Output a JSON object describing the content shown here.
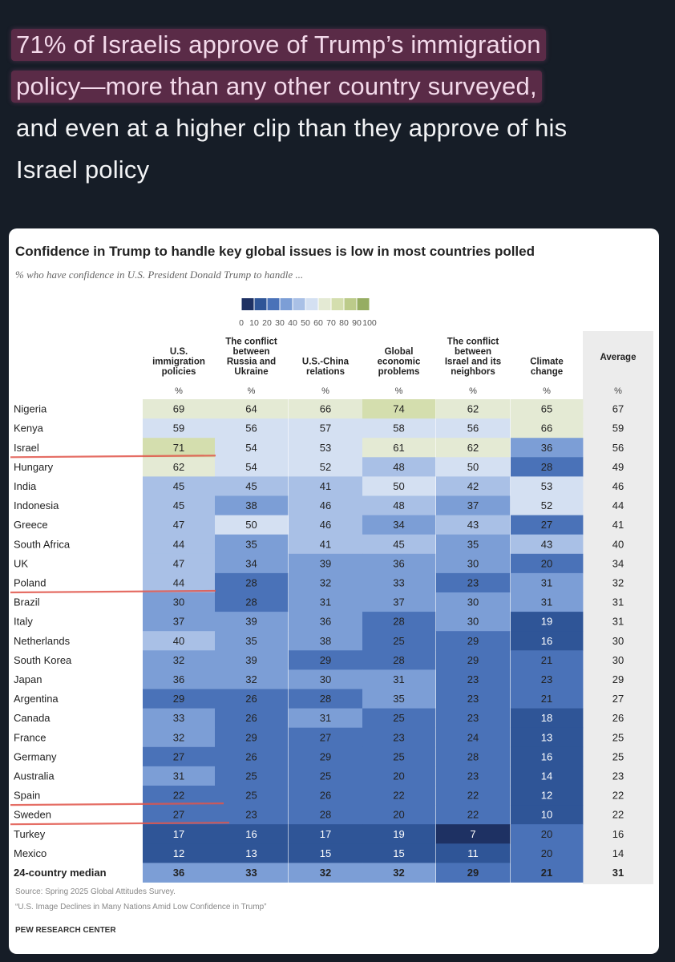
{
  "post": {
    "lines": [
      "71% of Israelis approve of Trump’s immigration",
      "policy—more than any other country surveyed,",
      "and even at a higher clip than they approve of his",
      "Israel policy"
    ]
  },
  "chart_data": {
    "type": "heatmap",
    "title": "Confidence in Trump to handle key global issues is low in most countries polled",
    "subtitle": "% who have confidence in U.S. President Donald Trump to handle ...",
    "legend_ticks": [
      "0",
      "10",
      "20",
      "30",
      "40",
      "50",
      "60",
      "70",
      "80",
      "90",
      "100"
    ],
    "columns": [
      [
        "U.S.",
        "immigration",
        "policies"
      ],
      [
        "The conflict",
        "between",
        "Russia and",
        "Ukraine"
      ],
      [
        "U.S.-China",
        "relations"
      ],
      [
        "Global",
        "economic",
        "problems"
      ],
      [
        "The conflict",
        "between",
        "Israel and its",
        "neighbors"
      ],
      [
        "Climate",
        "change"
      ]
    ],
    "average_label": "Average",
    "unit": "%",
    "rows": [
      {
        "country": "Nigeria",
        "values": [
          69,
          64,
          66,
          74,
          62,
          65
        ],
        "average": 67
      },
      {
        "country": "Kenya",
        "values": [
          59,
          56,
          57,
          58,
          56,
          66
        ],
        "average": 59
      },
      {
        "country": "Israel",
        "values": [
          71,
          54,
          53,
          61,
          62,
          36
        ],
        "average": 56
      },
      {
        "country": "Hungary",
        "values": [
          62,
          54,
          52,
          48,
          50,
          28
        ],
        "average": 49
      },
      {
        "country": "India",
        "values": [
          45,
          45,
          41,
          50,
          42,
          53
        ],
        "average": 46
      },
      {
        "country": "Indonesia",
        "values": [
          45,
          38,
          46,
          48,
          37,
          52
        ],
        "average": 44
      },
      {
        "country": "Greece",
        "values": [
          47,
          50,
          46,
          34,
          43,
          27
        ],
        "average": 41
      },
      {
        "country": "South Africa",
        "values": [
          44,
          35,
          41,
          45,
          35,
          43
        ],
        "average": 40
      },
      {
        "country": "UK",
        "values": [
          47,
          34,
          39,
          36,
          30,
          20
        ],
        "average": 34
      },
      {
        "country": "Poland",
        "values": [
          44,
          28,
          32,
          33,
          23,
          31
        ],
        "average": 32
      },
      {
        "country": "Brazil",
        "values": [
          30,
          28,
          31,
          37,
          30,
          31
        ],
        "average": 31
      },
      {
        "country": "Italy",
        "values": [
          37,
          39,
          36,
          28,
          30,
          19
        ],
        "average": 31
      },
      {
        "country": "Netherlands",
        "values": [
          40,
          35,
          38,
          25,
          29,
          16
        ],
        "average": 30
      },
      {
        "country": "South Korea",
        "values": [
          32,
          39,
          29,
          28,
          29,
          21
        ],
        "average": 30
      },
      {
        "country": "Japan",
        "values": [
          36,
          32,
          30,
          31,
          23,
          23
        ],
        "average": 29
      },
      {
        "country": "Argentina",
        "values": [
          29,
          26,
          28,
          35,
          23,
          21
        ],
        "average": 27
      },
      {
        "country": "Canada",
        "values": [
          33,
          26,
          31,
          25,
          23,
          18
        ],
        "average": 26
      },
      {
        "country": "France",
        "values": [
          32,
          29,
          27,
          23,
          24,
          13
        ],
        "average": 25
      },
      {
        "country": "Germany",
        "values": [
          27,
          26,
          29,
          25,
          28,
          16
        ],
        "average": 25
      },
      {
        "country": "Australia",
        "values": [
          31,
          25,
          25,
          20,
          23,
          14
        ],
        "average": 23
      },
      {
        "country": "Spain",
        "values": [
          22,
          25,
          26,
          22,
          22,
          12
        ],
        "average": 22
      },
      {
        "country": "Sweden",
        "values": [
          27,
          23,
          28,
          20,
          22,
          10
        ],
        "average": 22
      },
      {
        "country": "Turkey",
        "values": [
          17,
          16,
          17,
          19,
          7,
          20
        ],
        "average": 16
      },
      {
        "country": "Mexico",
        "values": [
          12,
          13,
          15,
          15,
          11,
          20
        ],
        "average": 14
      }
    ],
    "median": {
      "label": "24-country median",
      "values": [
        36,
        33,
        32,
        32,
        29,
        21
      ],
      "average": 31
    },
    "underlined_rows": [
      "Israel",
      "Poland",
      "Spain",
      "Sweden"
    ],
    "colors": {
      "scale": [
        "#1e3163",
        "#2f5597",
        "#4a72b8",
        "#7c9ed6",
        "#a9c0e6",
        "#d4e0f2",
        "#e4ead4",
        "#d4deae",
        "#bccb8a",
        "#96ad62",
        "#728a42"
      ],
      "average_column": "#ececec",
      "underline": "#e0554a"
    }
  },
  "footer": {
    "source": "Source: Spring 2025 Global Attitudes Survey.",
    "report": "“U.S. Image Declines in Many Nations Amid Low Confidence in Trump”",
    "org": "PEW RESEARCH CENTER"
  }
}
